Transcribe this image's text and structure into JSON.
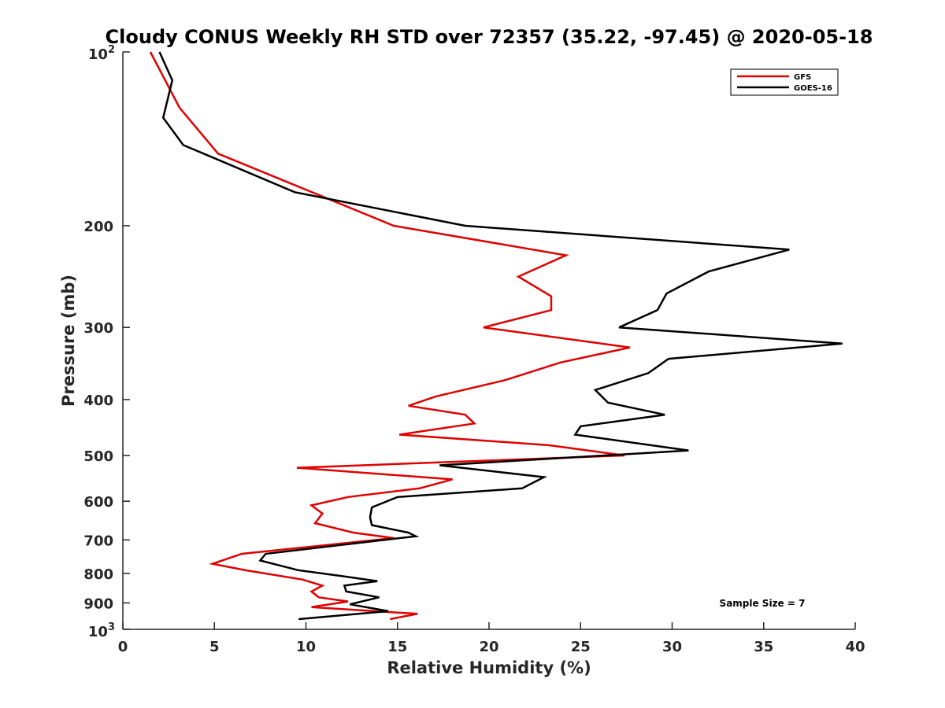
{
  "chart_data": {
    "type": "line",
    "title": "Cloudy CONUS Weekly RH STD over 72357 (35.22, -97.45) @ 2020-05-18",
    "xlabel": "Relative Humidity (%)",
    "ylabel": "Pressure (mb)",
    "xlim": [
      0,
      40
    ],
    "ylim": [
      100,
      1000
    ],
    "y_scale": "log",
    "y_reversed": true,
    "x_ticks": [
      0,
      5,
      10,
      15,
      20,
      25,
      30,
      35,
      40
    ],
    "y_ticks": [
      {
        "value": 100,
        "base": "10",
        "exp": "2"
      },
      {
        "value": 200,
        "label": "200"
      },
      {
        "value": 300,
        "label": "300"
      },
      {
        "value": 400,
        "label": "400"
      },
      {
        "value": 500,
        "label": "500"
      },
      {
        "value": 600,
        "label": "600"
      },
      {
        "value": 700,
        "label": "700"
      },
      {
        "value": 800,
        "label": "800"
      },
      {
        "value": 900,
        "label": "900"
      },
      {
        "value": 1000,
        "base": "10",
        "exp": "3"
      }
    ],
    "grid": false,
    "legend_position": "top-right",
    "series": [
      {
        "name": "GFS",
        "color": "#e00000",
        "rh": [
          1.5,
          3.1,
          5.2,
          14.8,
          24.2,
          21.6,
          23.4,
          23.4,
          19.7,
          27.7,
          23.9,
          20.9,
          17.1,
          15.6,
          18.7,
          19.2,
          15.1,
          23.3,
          27.4,
          9.5,
          18.0,
          16.2,
          12.3,
          10.3,
          10.9,
          10.5,
          12.6,
          14.8,
          6.5,
          4.9,
          6.7,
          9.8,
          10.9,
          10.3,
          10.7,
          12.3,
          10.3,
          16.1,
          14.6
        ],
        "pressure": [
          100,
          125,
          150,
          200,
          225,
          245,
          265,
          280,
          300,
          325,
          345,
          370,
          395,
          410,
          425,
          440,
          460,
          480,
          500,
          525,
          550,
          570,
          590,
          610,
          630,
          655,
          680,
          695,
          740,
          770,
          790,
          820,
          840,
          860,
          880,
          895,
          915,
          940,
          960
        ]
      },
      {
        "name": "GOES-16",
        "color": "#000000",
        "rh": [
          2.0,
          2.7,
          2.2,
          3.3,
          9.4,
          18.7,
          36.4,
          32.0,
          29.7,
          29.2,
          27.1,
          39.3,
          29.8,
          28.7,
          25.8,
          26.5,
          29.6,
          25.0,
          24.7,
          30.9,
          17.3,
          23.0,
          21.8,
          15.0,
          13.6,
          13.5,
          13.6,
          15.6,
          16.0,
          14.3,
          7.8,
          7.5,
          9.6,
          12.1,
          13.9,
          12.1,
          12.2,
          14.0,
          12.4,
          14.5,
          9.6
        ],
        "pressure": [
          100,
          112,
          130,
          145,
          175,
          200,
          220,
          240,
          262,
          280,
          300,
          320,
          340,
          360,
          385,
          405,
          425,
          445,
          460,
          490,
          520,
          545,
          570,
          590,
          615,
          640,
          660,
          680,
          690,
          700,
          740,
          760,
          790,
          810,
          825,
          840,
          860,
          880,
          905,
          930,
          960
        ]
      }
    ],
    "annotation": "Sample Size = 7"
  }
}
